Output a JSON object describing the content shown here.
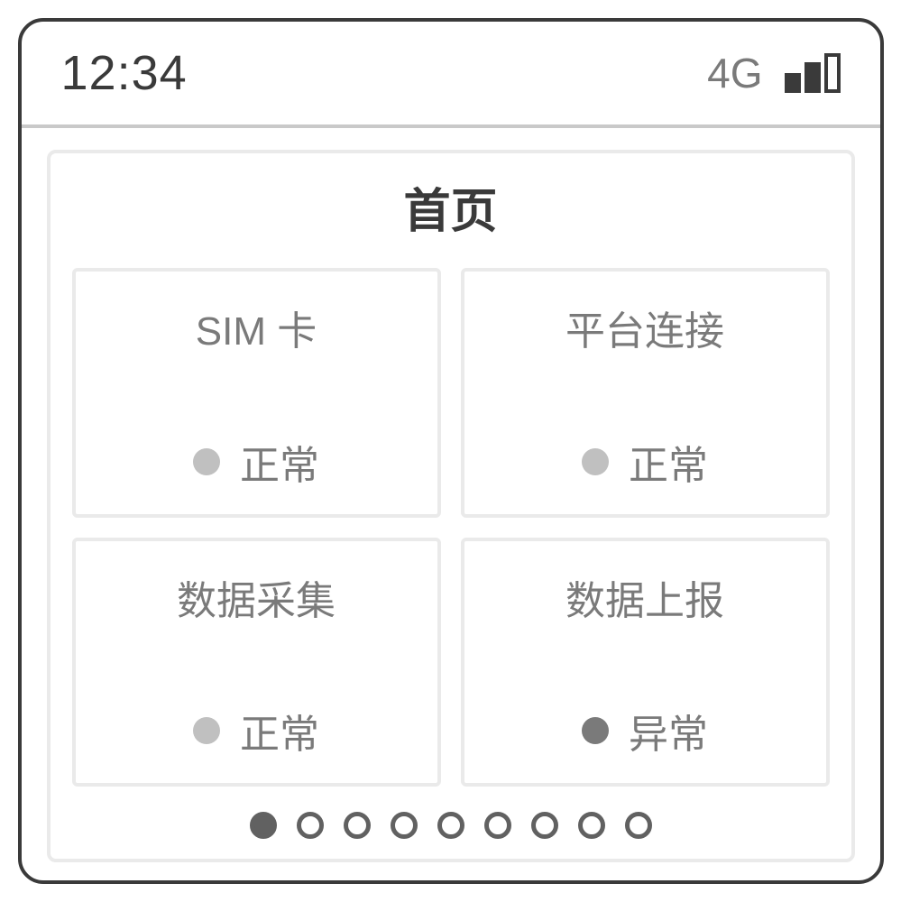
{
  "statusBar": {
    "time": "12:34",
    "network": "4G"
  },
  "page": {
    "title": "首页"
  },
  "cards": [
    {
      "title": "SIM 卡",
      "status": "正常",
      "dotColor": "#c0c0c0"
    },
    {
      "title": "平台连接",
      "status": "正常",
      "dotColor": "#c0c0c0"
    },
    {
      "title": "数据采集",
      "status": "正常",
      "dotColor": "#c0c0c0"
    },
    {
      "title": "数据上报",
      "status": "异常",
      "dotColor": "#7a7a7a"
    }
  ],
  "pagination": {
    "total": 9,
    "active": 0,
    "activeColor": "#616161",
    "inactiveBorder": "#616161"
  },
  "colors": {
    "frameBorder": "#3a3a3a",
    "panelBorder": "#eaeaea",
    "textPrimary": "#3a3a3a",
    "textSecondary": "#7a7a7a",
    "dividerColor": "#c9c9c9"
  }
}
